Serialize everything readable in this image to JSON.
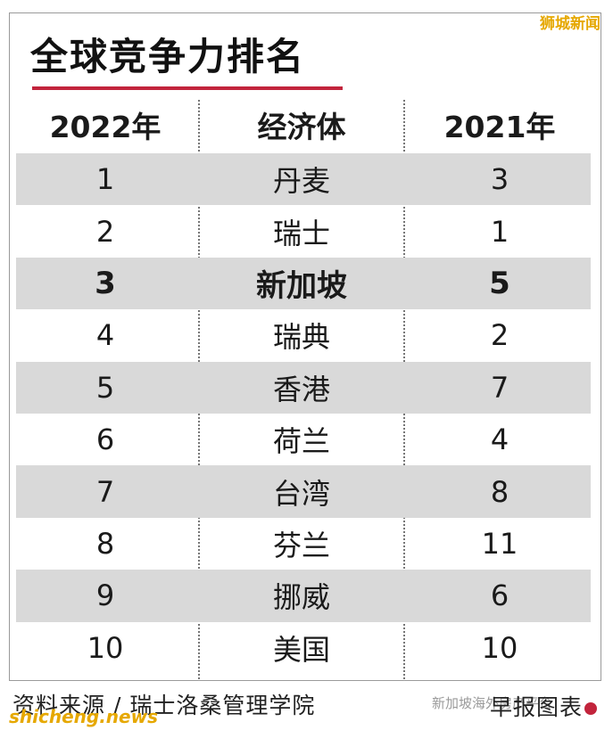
{
  "title": "全球竞争力排名",
  "watermark_top": "狮城新闻",
  "headers": {
    "col1": "2022年",
    "col2": "经济体",
    "col3": "2021年"
  },
  "rows": [
    {
      "rank2022": "1",
      "economy": "丹麦",
      "rank2021": "3"
    },
    {
      "rank2022": "2",
      "economy": "瑞士",
      "rank2021": "1"
    },
    {
      "rank2022": "3",
      "economy": "新加坡",
      "rank2021": "5"
    },
    {
      "rank2022": "4",
      "economy": "瑞典",
      "rank2021": "2"
    },
    {
      "rank2022": "5",
      "economy": "香港",
      "rank2021": "7"
    },
    {
      "rank2022": "6",
      "economy": "荷兰",
      "rank2021": "4"
    },
    {
      "rank2022": "7",
      "economy": "台湾",
      "rank2021": "8"
    },
    {
      "rank2022": "8",
      "economy": "芬兰",
      "rank2021": "11"
    },
    {
      "rank2022": "9",
      "economy": "挪威",
      "rank2021": "6"
    },
    {
      "rank2022": "10",
      "economy": "美国",
      "rank2021": "10"
    }
  ],
  "source": "资料来源 / 瑞士洛桑管理学院",
  "credit": "早报图表",
  "watermark_bottom_left": "shicheng.news",
  "watermark_bottom_mid": "新加坡海外房产平台",
  "colors": {
    "accent": "#c2243c",
    "shade": "#d9d9d9",
    "watermark": "#e6a800"
  }
}
